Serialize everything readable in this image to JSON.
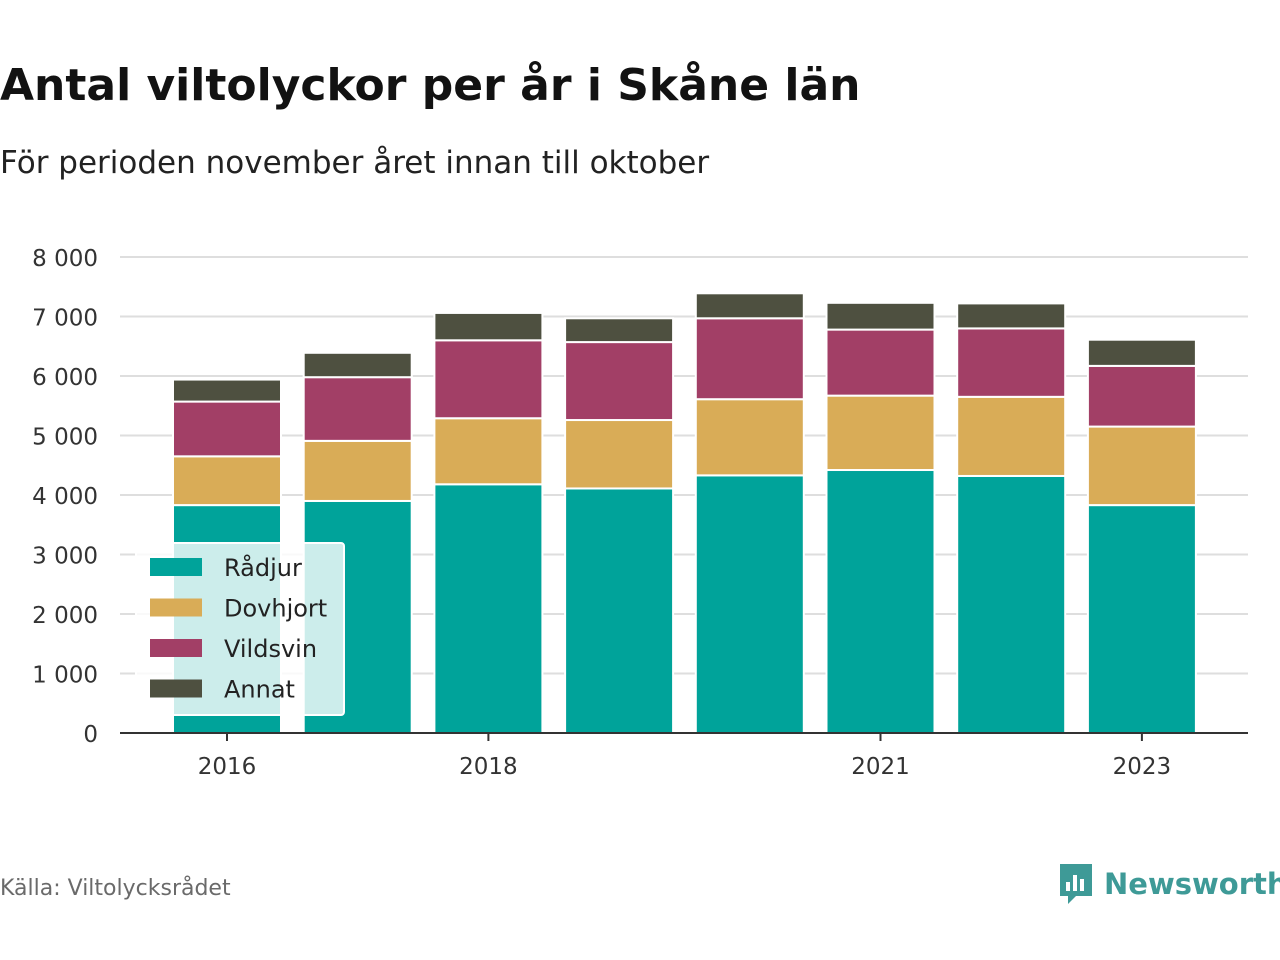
{
  "title": "Antal viltolyckor per år i Skåne län",
  "subtitle": "För perioden november året innan till oktober",
  "source": "Källa: Viltolycksrådet",
  "brand": {
    "name": "Newsworthy",
    "icon": "newsworthy-logo-icon",
    "color": "#3e9a97"
  },
  "chart_data": {
    "type": "bar",
    "stacked": true,
    "x": [
      2016,
      2017,
      2018,
      2019,
      2020,
      2021,
      2022,
      2023
    ],
    "x_tick_labels": [
      {
        "x": 2016,
        "label": "2016"
      },
      {
        "x": 2018,
        "label": "2018"
      },
      {
        "x": 2021,
        "label": "2021"
      },
      {
        "x": 2023,
        "label": "2023"
      }
    ],
    "ylim": [
      0,
      8000
    ],
    "y_ticks": [
      {
        "value": 0,
        "label": "0"
      },
      {
        "value": 1000,
        "label": "1 000"
      },
      {
        "value": 2000,
        "label": "2 000"
      },
      {
        "value": 3000,
        "label": "3 000"
      },
      {
        "value": 4000,
        "label": "4 000"
      },
      {
        "value": 5000,
        "label": "5 000"
      },
      {
        "value": 6000,
        "label": "6 000"
      },
      {
        "value": 7000,
        "label": "7 000"
      },
      {
        "value": 8000,
        "label": "8 000"
      }
    ],
    "grid": true,
    "legend_position": "bottom-left",
    "series": [
      {
        "name": "Rådjur",
        "color": "#00a39a",
        "values": [
          3830,
          3900,
          4180,
          4110,
          4330,
          4420,
          4320,
          3830
        ]
      },
      {
        "name": "Dovhjort",
        "color": "#d9ac57",
        "values": [
          820,
          1010,
          1110,
          1150,
          1280,
          1250,
          1330,
          1320
        ]
      },
      {
        "name": "Vildsvin",
        "color": "#a23f66",
        "values": [
          920,
          1070,
          1310,
          1310,
          1360,
          1110,
          1150,
          1020
        ]
      },
      {
        "name": "Annat",
        "color": "#4e5040",
        "values": [
          370,
          410,
          460,
          400,
          420,
          450,
          420,
          440
        ]
      }
    ]
  }
}
